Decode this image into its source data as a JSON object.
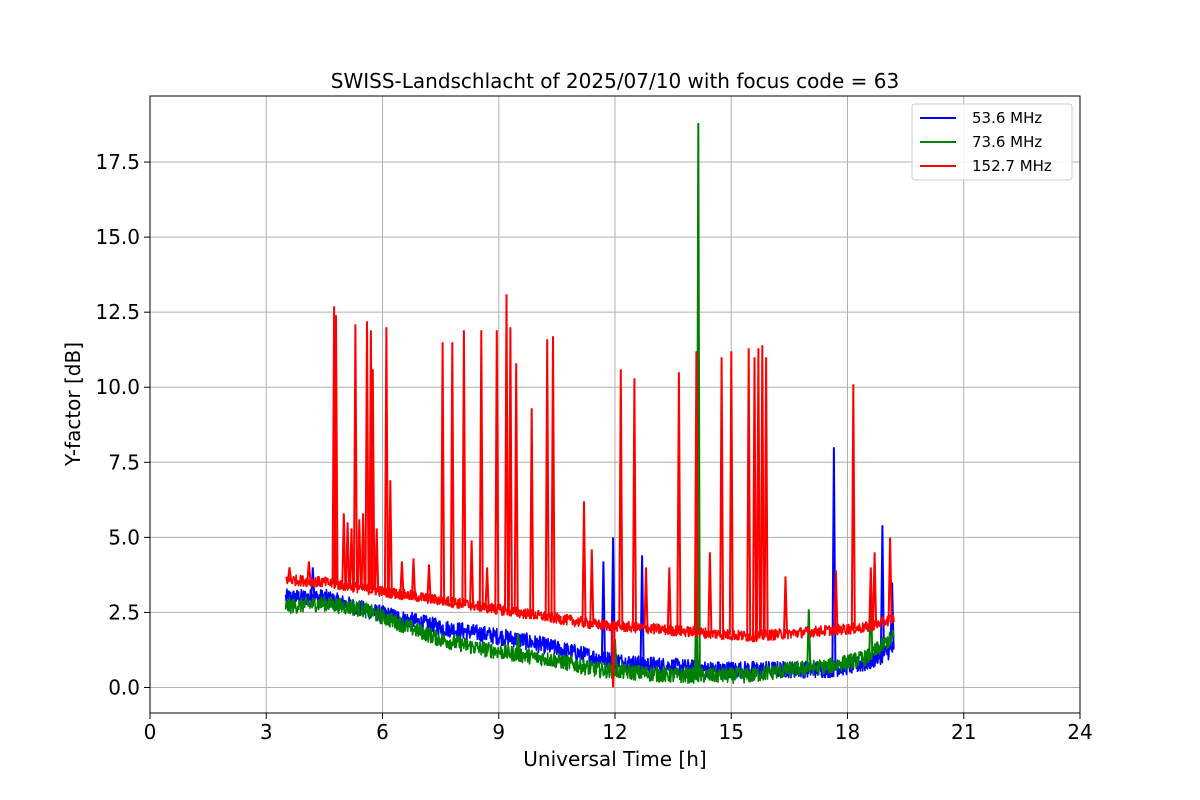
{
  "chart_data": {
    "type": "line",
    "title": "SWISS-Landschlacht of 2025/07/10 with focus code = 63",
    "xlabel": "Universal Time [h]",
    "ylabel": "Y-factor [dB]",
    "xlim": [
      0,
      24
    ],
    "ylim": [
      -0.85,
      19.7
    ],
    "xticks": [
      0,
      3,
      6,
      9,
      12,
      15,
      18,
      21,
      24
    ],
    "xtick_labels": [
      "0",
      "3",
      "6",
      "9",
      "12",
      "15",
      "18",
      "21",
      "24"
    ],
    "yticks": [
      0,
      2.5,
      5,
      7.5,
      10,
      12.5,
      15,
      17.5
    ],
    "ytick_labels": [
      "0.0",
      "2.5",
      "5.0",
      "7.5",
      "10.0",
      "12.5",
      "15.0",
      "17.5"
    ],
    "grid": true,
    "legend_position": "top-right",
    "series": [
      {
        "name": "53.6 MHz",
        "color": "#0000ff",
        "baseline": [
          [
            3.5,
            3.0
          ],
          [
            4.5,
            3.0
          ],
          [
            5.5,
            2.6
          ],
          [
            6.5,
            2.3
          ],
          [
            7.5,
            2.0
          ],
          [
            8.5,
            1.8
          ],
          [
            9.5,
            1.6
          ],
          [
            10.5,
            1.3
          ],
          [
            11.5,
            1.0
          ],
          [
            12.5,
            0.8
          ],
          [
            13.5,
            0.7
          ],
          [
            14.5,
            0.6
          ],
          [
            15.5,
            0.6
          ],
          [
            16.5,
            0.6
          ],
          [
            17.5,
            0.6
          ],
          [
            18.5,
            0.8
          ],
          [
            19.2,
            1.3
          ]
        ],
        "spikes": [
          [
            4.2,
            4.0
          ],
          [
            11.7,
            4.2
          ],
          [
            11.95,
            5.0
          ],
          [
            12.7,
            4.4
          ],
          [
            17.65,
            8.0
          ],
          [
            18.9,
            5.4
          ],
          [
            19.15,
            3.5
          ]
        ]
      },
      {
        "name": "73.6 MHz",
        "color": "#008000",
        "baseline": [
          [
            3.5,
            2.7
          ],
          [
            4.5,
            2.8
          ],
          [
            5.5,
            2.6
          ],
          [
            6.5,
            2.1
          ],
          [
            7.5,
            1.6
          ],
          [
            8.5,
            1.3
          ],
          [
            9.5,
            1.1
          ],
          [
            10.5,
            0.9
          ],
          [
            11.5,
            0.6
          ],
          [
            12.5,
            0.5
          ],
          [
            13.5,
            0.4
          ],
          [
            14.5,
            0.4
          ],
          [
            15.5,
            0.4
          ],
          [
            16.5,
            0.6
          ],
          [
            17.5,
            0.7
          ],
          [
            18.5,
            1.0
          ],
          [
            19.2,
            1.7
          ]
        ],
        "spikes": [
          [
            9.5,
            1.8
          ],
          [
            12.0,
            1.6
          ],
          [
            14.1,
            3.0
          ],
          [
            14.15,
            18.8
          ],
          [
            17.0,
            2.6
          ],
          [
            18.6,
            3.2
          ]
        ]
      },
      {
        "name": "152.7 MHz",
        "color": "#ff0000",
        "baseline": [
          [
            3.5,
            3.6
          ],
          [
            4.5,
            3.5
          ],
          [
            5.5,
            3.3
          ],
          [
            6.5,
            3.1
          ],
          [
            7.5,
            2.9
          ],
          [
            8.5,
            2.7
          ],
          [
            9.5,
            2.5
          ],
          [
            10.5,
            2.3
          ],
          [
            11.5,
            2.1
          ],
          [
            12.5,
            2.0
          ],
          [
            13.5,
            1.9
          ],
          [
            14.5,
            1.8
          ],
          [
            15.5,
            1.7
          ],
          [
            16.5,
            1.8
          ],
          [
            17.5,
            1.9
          ],
          [
            18.5,
            2.0
          ],
          [
            19.2,
            2.3
          ]
        ],
        "spikes": [
          [
            3.6,
            4.0
          ],
          [
            4.1,
            4.2
          ],
          [
            4.75,
            12.7
          ],
          [
            4.8,
            12.4
          ],
          [
            5.0,
            5.8
          ],
          [
            5.1,
            5.5
          ],
          [
            5.2,
            5.3
          ],
          [
            5.3,
            12.1
          ],
          [
            5.4,
            5.6
          ],
          [
            5.5,
            5.8
          ],
          [
            5.6,
            12.2
          ],
          [
            5.7,
            11.9
          ],
          [
            5.75,
            10.6
          ],
          [
            5.85,
            5.3
          ],
          [
            6.1,
            12.0
          ],
          [
            6.2,
            6.9
          ],
          [
            6.5,
            4.2
          ],
          [
            6.8,
            4.3
          ],
          [
            7.2,
            4.1
          ],
          [
            7.55,
            11.5
          ],
          [
            7.8,
            11.5
          ],
          [
            8.1,
            11.9
          ],
          [
            8.3,
            4.9
          ],
          [
            8.55,
            11.9
          ],
          [
            8.7,
            4.0
          ],
          [
            8.95,
            11.9
          ],
          [
            9.2,
            13.1
          ],
          [
            9.3,
            12.0
          ],
          [
            9.45,
            10.8
          ],
          [
            9.85,
            9.3
          ],
          [
            10.25,
            11.6
          ],
          [
            10.4,
            11.7
          ],
          [
            11.2,
            6.2
          ],
          [
            11.4,
            4.6
          ],
          [
            11.95,
            0.0
          ],
          [
            12.15,
            10.6
          ],
          [
            12.5,
            10.3
          ],
          [
            12.8,
            4.0
          ],
          [
            13.4,
            4.0
          ],
          [
            13.65,
            10.5
          ],
          [
            14.1,
            11.2
          ],
          [
            14.45,
            4.5
          ],
          [
            14.75,
            11.0
          ],
          [
            15.0,
            11.2
          ],
          [
            15.45,
            11.3
          ],
          [
            15.6,
            11.0
          ],
          [
            15.7,
            11.3
          ],
          [
            15.8,
            11.4
          ],
          [
            15.9,
            11.0
          ],
          [
            16.4,
            3.7
          ],
          [
            17.7,
            3.9
          ],
          [
            18.15,
            10.1
          ],
          [
            18.6,
            4.0
          ],
          [
            18.7,
            4.5
          ],
          [
            19.1,
            5.0
          ]
        ]
      }
    ]
  }
}
